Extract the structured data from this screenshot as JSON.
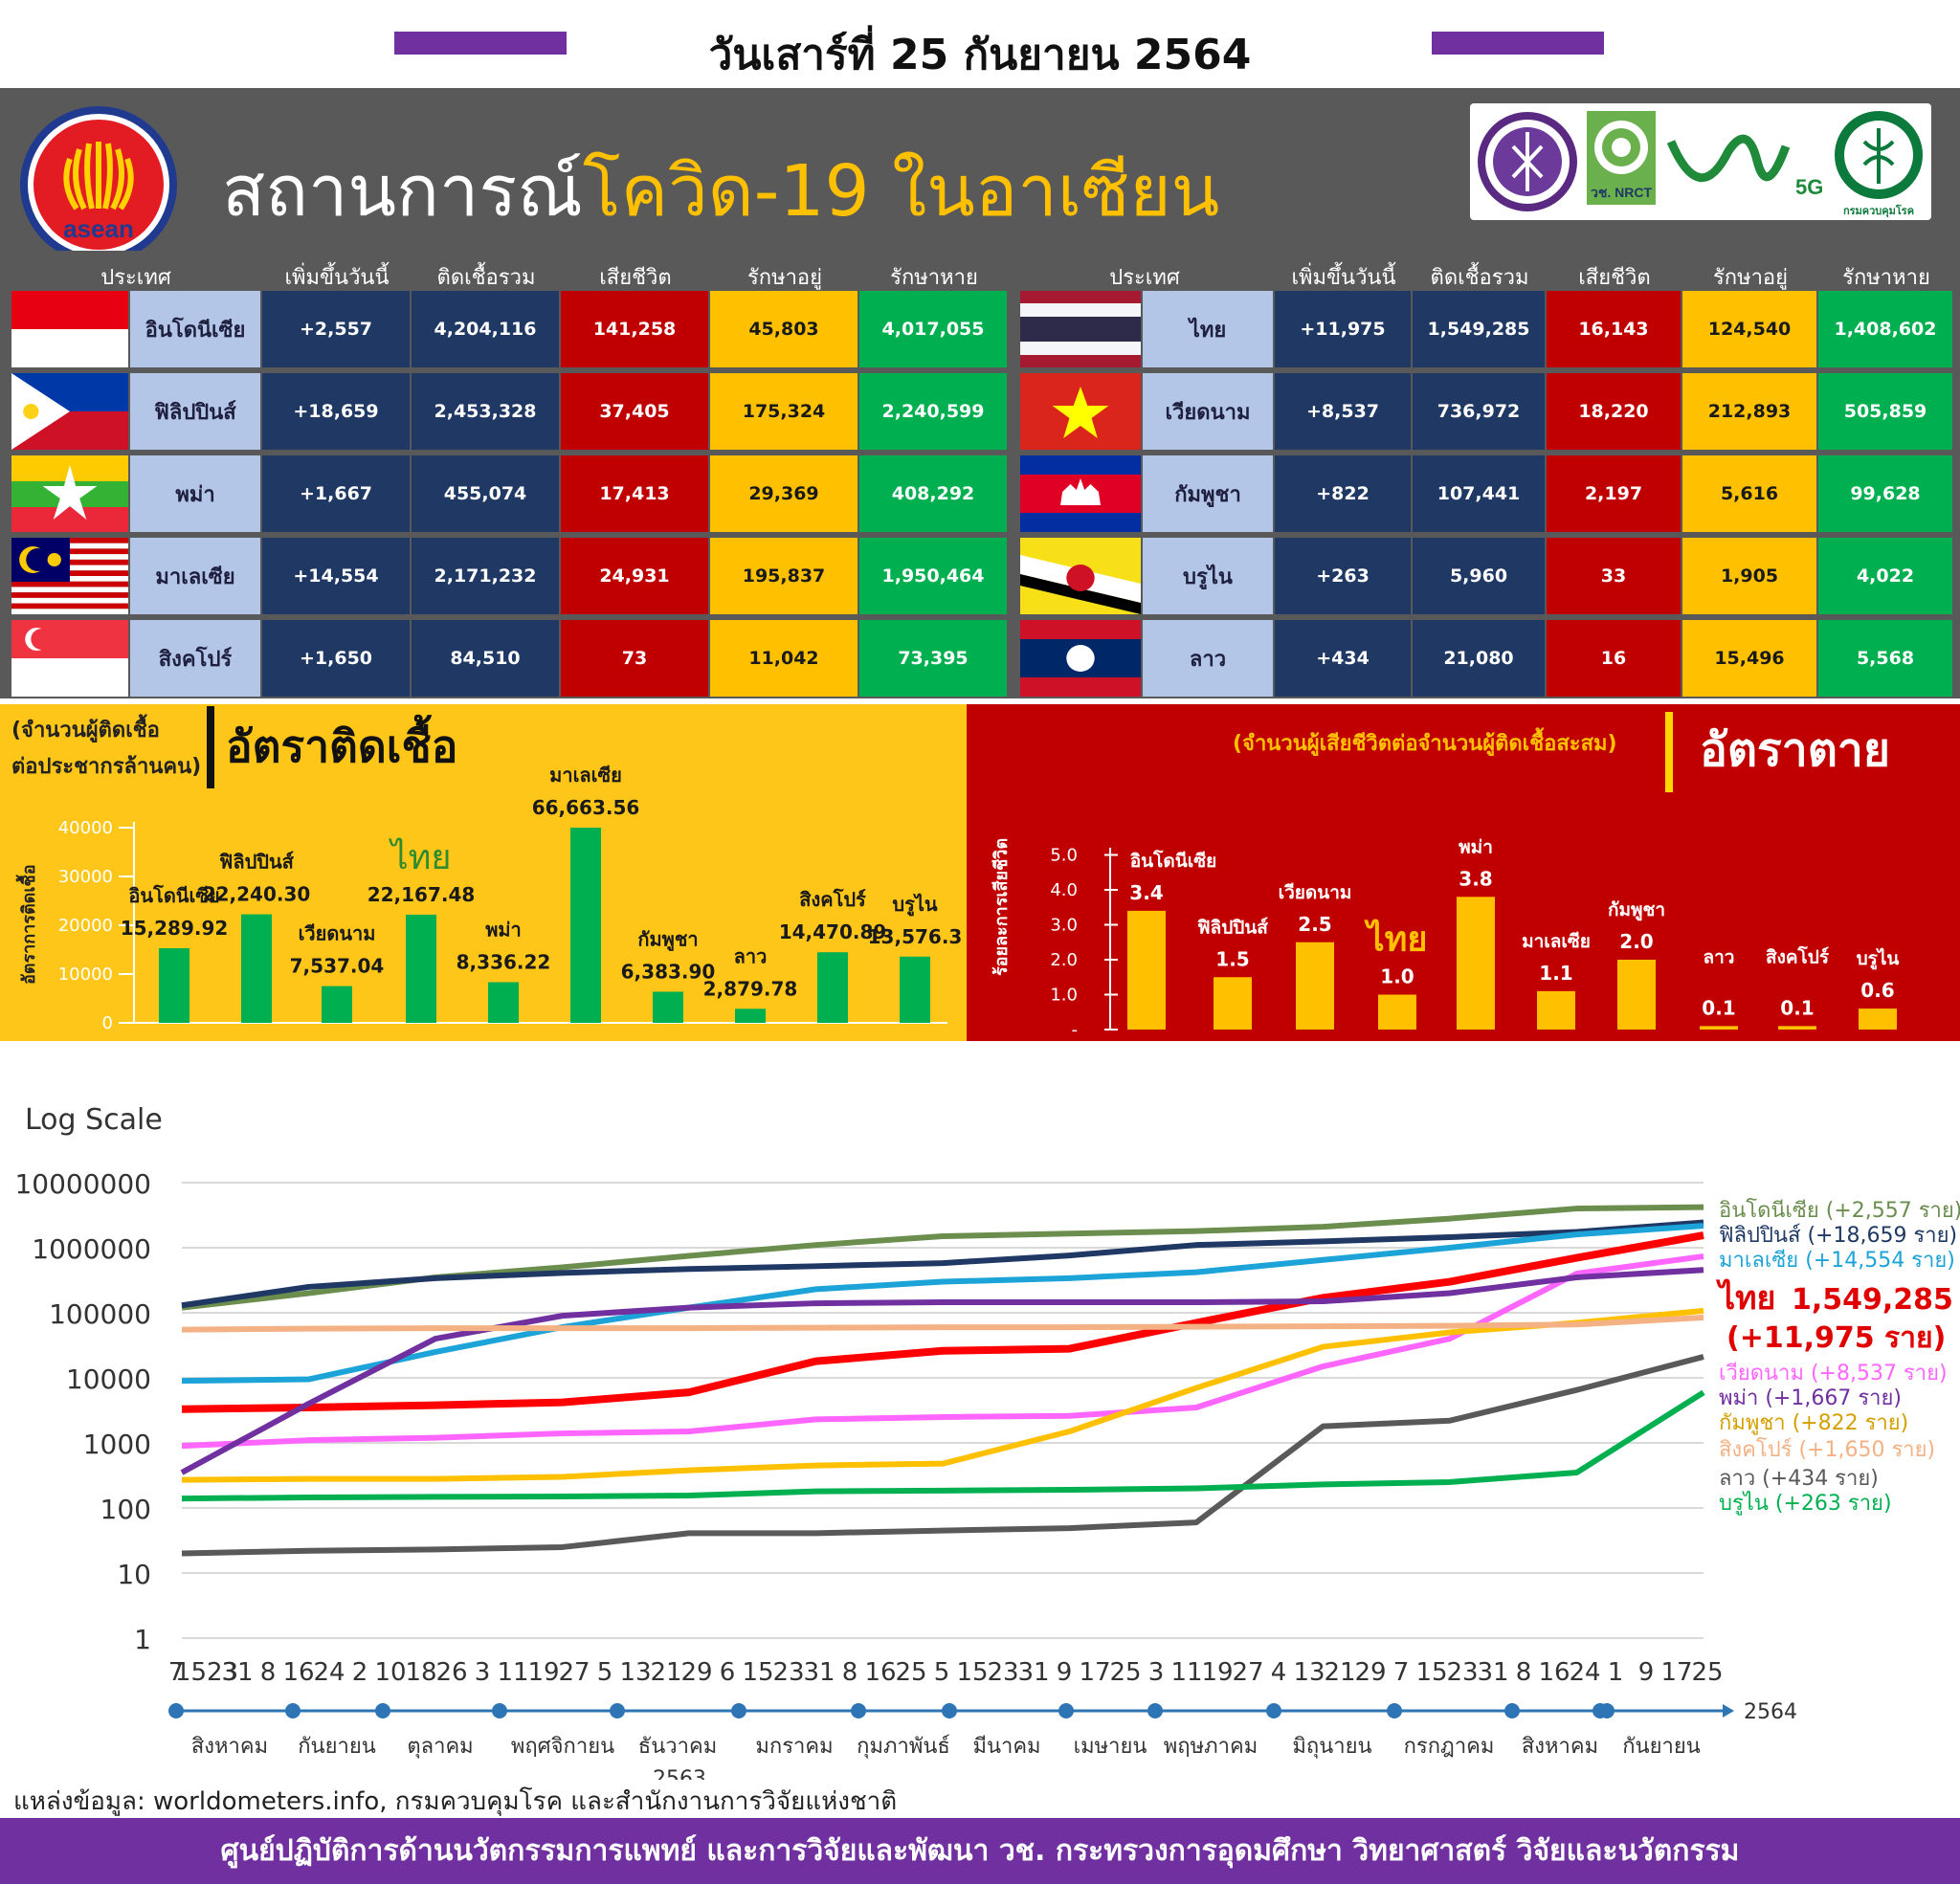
{
  "header": {
    "date": "วันเสาร์ที่ 25 กันยายน 2564",
    "title_part1": "สถานการณ์",
    "title_part2": "โควิด-19 ในอาเซียน",
    "asean_text": "asean",
    "logo_nrct": "วช. NRCT",
    "logo_5g": "5G",
    "logo_ddc": "กรมควบคุมโรค"
  },
  "colors": {
    "purple": "#7030a0",
    "header_gray": "#595959",
    "name_cell": "#b4c6e7",
    "navy": "#1f3864",
    "death_red": "#c00000",
    "active_yellow": "#ffc000",
    "recovered_green": "#00b050"
  },
  "table": {
    "columns": [
      "ประเทศ",
      "เพิ่มขึ้นวันนี้",
      "ติดเชื้อรวม",
      "เสียชีวิต",
      "รักษาอยู่",
      "รักษาหาย"
    ],
    "left": [
      {
        "flag": "indonesia-flag",
        "country": "อินโดนีเซีย",
        "new": "+2,557",
        "total": "4,204,116",
        "deaths": "141,258",
        "active": "45,803",
        "recovered": "4,017,055"
      },
      {
        "flag": "philippines-flag",
        "country": "ฟิลิปปินส์",
        "new": "+18,659",
        "total": "2,453,328",
        "deaths": "37,405",
        "active": "175,324",
        "recovered": "2,240,599"
      },
      {
        "flag": "myanmar-flag",
        "country": "พม่า",
        "new": "+1,667",
        "total": "455,074",
        "deaths": "17,413",
        "active": "29,369",
        "recovered": "408,292"
      },
      {
        "flag": "malaysia-flag",
        "country": "มาเลเซีย",
        "new": "+14,554",
        "total": "2,171,232",
        "deaths": "24,931",
        "active": "195,837",
        "recovered": "1,950,464"
      },
      {
        "flag": "singapore-flag",
        "country": "สิงคโปร์",
        "new": "+1,650",
        "total": "84,510",
        "deaths": "73",
        "active": "11,042",
        "recovered": "73,395"
      }
    ],
    "right": [
      {
        "flag": "thailand-flag",
        "country": "ไทย",
        "new": "+11,975",
        "total": "1,549,285",
        "deaths": "16,143",
        "active": "124,540",
        "recovered": "1,408,602"
      },
      {
        "flag": "vietnam-flag",
        "country": "เวียดนาม",
        "new": "+8,537",
        "total": "736,972",
        "deaths": "18,220",
        "active": "212,893",
        "recovered": "505,859"
      },
      {
        "flag": "cambodia-flag",
        "country": "กัมพูชา",
        "new": "+822",
        "total": "107,441",
        "deaths": "2,197",
        "active": "5,616",
        "recovered": "99,628"
      },
      {
        "flag": "brunei-flag",
        "country": "บรูไน",
        "new": "+263",
        "total": "5,960",
        "deaths": "33",
        "active": "1,905",
        "recovered": "4,022"
      },
      {
        "flag": "laos-flag",
        "country": "ลาว",
        "new": "+434",
        "total": "21,080",
        "deaths": "16",
        "active": "15,496",
        "recovered": "5,568"
      }
    ]
  },
  "chart_data": [
    {
      "type": "bar",
      "title": "อัตราติดเชื้อ",
      "subtitle": "(จำนวนผู้ติดเชื้อต่อประชากรล้านคน)",
      "ylabel": "อัตราการติดเชื้อ",
      "ylim": [
        0,
        40000
      ],
      "yticks": [
        "40000",
        "30000",
        "20000",
        "10000",
        "0"
      ],
      "categories": [
        "อินโดนีเซีย",
        "ฟิลิปปินส์",
        "เวียดนาม",
        "ไทย",
        "พม่า",
        "มาเลเซีย",
        "กัมพูชา",
        "ลาว",
        "สิงคโปร์",
        "บรูไน"
      ],
      "values": [
        15289.92,
        22240.3,
        7537.04,
        22167.48,
        8336.22,
        66663.56,
        6383.9,
        2879.78,
        14470.89,
        13576.3
      ],
      "value_labels": [
        "15,289.92",
        "22,240.30",
        "7,537.04",
        "22,167.48",
        "8,336.22",
        "66,663.56",
        "6,383.90",
        "2,879.78",
        "14,470.89",
        "13,576.3"
      ],
      "bar_color": "#00b050"
    },
    {
      "type": "bar",
      "title": "อัตราตาย",
      "subtitle": "(จำนวนผู้เสียชีวิตต่อจำนวนผู้ติดเชื้อสะสม)",
      "ylabel": "ร้อยละการเสียชีวิต",
      "ylim": [
        0,
        5
      ],
      "yticks": [
        "5.0",
        "4.0",
        "3.0",
        "2.0",
        "1.0",
        "-"
      ],
      "categories": [
        "อินโดนีเซีย",
        "ฟิลิปปินส์",
        "เวียดนาม",
        "ไทย",
        "พม่า",
        "มาเลเซีย",
        "กัมพูชา",
        "ลาว",
        "สิงคโปร์",
        "บรูไน"
      ],
      "values": [
        3.4,
        1.5,
        2.5,
        1.0,
        3.8,
        1.1,
        2.0,
        0.1,
        0.1,
        0.6
      ],
      "value_labels": [
        "3.4",
        "1.5",
        "2.5",
        "1.0",
        "3.8",
        "1.1",
        "2.0",
        "0.1",
        "0.1",
        "0.6"
      ],
      "bar_color": "#ffc000"
    },
    {
      "type": "line",
      "title": "Log Scale",
      "yscale": "log",
      "ylim": [
        1,
        10000000
      ],
      "yticks": [
        "10000000",
        "1000000",
        "100000",
        "10000",
        "1000",
        "100",
        "10",
        "1"
      ],
      "xticks": [
        "7",
        "1523",
        "31",
        "8",
        "16",
        "24",
        "2",
        "10",
        "18",
        "26",
        "3",
        "11",
        "19",
        "27",
        "5",
        "13",
        "21",
        "29",
        "6",
        "15",
        "23",
        "31",
        "8",
        "16",
        "25",
        "5",
        "15",
        "23",
        "31",
        "9",
        "17",
        "25",
        "3",
        "11",
        "19",
        "27",
        "4",
        "13",
        "21",
        "29",
        "7",
        "15",
        "23",
        "31",
        "8",
        "16",
        "24",
        "1",
        "9",
        "17",
        "25"
      ],
      "months": [
        "สิงหาคม",
        "กันยายน",
        "ตุลาคม",
        "พฤศจิกายน",
        "ธันวาคม",
        "มกราคม",
        "กุมภาพันธ์",
        "มีนาคม",
        "เมษายน",
        "พฤษภาคม",
        "มิถุนายน",
        "กรกฎาคม",
        "สิงหาคม",
        "กันยายน"
      ],
      "year_labels": [
        "2563",
        "2564"
      ],
      "series": [
        {
          "name": "อินโดนีเซีย",
          "label": "อินโดนีเซีย (+2,557 ราย)",
          "color": "#6b8e4e",
          "values": [
            120000,
            200000,
            350000,
            500000,
            750000,
            1100000,
            1500000,
            1650000,
            1800000,
            2100000,
            2800000,
            4000000,
            4204116
          ]
        },
        {
          "name": "ฟิลิปปินส์",
          "label": "ฟิลิปปินส์ (+18,659 ราย)",
          "color": "#1f3864",
          "values": [
            130000,
            250000,
            340000,
            410000,
            470000,
            520000,
            580000,
            760000,
            1100000,
            1250000,
            1450000,
            1750000,
            2453328
          ]
        },
        {
          "name": "มาเลเซีย",
          "label": "มาเลเซีย (+14,554 ราย)",
          "color": "#1ca3d8",
          "values": [
            9000,
            9500,
            25000,
            60000,
            120000,
            230000,
            300000,
            340000,
            420000,
            650000,
            1000000,
            1600000,
            2171232
          ]
        },
        {
          "name": "ไทย",
          "label_1": "ไทย",
          "label_2": "1,549,285",
          "label_3": "(+11,975 ราย)",
          "color": "#ff0000",
          "values": [
            3300,
            3500,
            3800,
            4200,
            6000,
            18000,
            26000,
            28000,
            70000,
            170000,
            300000,
            700000,
            1549285
          ]
        },
        {
          "name": "เวียดนาม",
          "label": "เวียดนาม (+8,537 ราย)",
          "color": "#ff66ff",
          "values": [
            900,
            1100,
            1200,
            1400,
            1500,
            2300,
            2500,
            2600,
            3500,
            15000,
            40000,
            400000,
            736972
          ]
        },
        {
          "name": "พม่า",
          "label": "พม่า (+1,667 ราย)",
          "color": "#7030a0",
          "values": [
            350,
            4000,
            40000,
            90000,
            120000,
            140000,
            145000,
            145000,
            145000,
            150000,
            200000,
            350000,
            455074
          ]
        },
        {
          "name": "กัมพูชา",
          "label": "กัมพูชา (+822 ราย)",
          "color": "#ffc000",
          "values": [
            270,
            280,
            280,
            300,
            380,
            450,
            480,
            1500,
            7000,
            30000,
            50000,
            70000,
            107441
          ]
        },
        {
          "name": "สิงคโปร์",
          "label": "สิงคโปร์ (+1,650 ราย)",
          "color": "#f4b183",
          "values": [
            55000,
            57000,
            58000,
            58000,
            58000,
            59000,
            60000,
            60000,
            61000,
            62000,
            63000,
            66000,
            84510
          ]
        },
        {
          "name": "ลาว",
          "label": "ลาว (+434 ราย)",
          "color": "#595959",
          "values": [
            20,
            22,
            23,
            25,
            41,
            41,
            45,
            49,
            60,
            1800,
            2200,
            6500,
            21080
          ]
        },
        {
          "name": "บรูไน",
          "label": "บรูไน (+263 ราย)",
          "color": "#00b050",
          "values": [
            140,
            145,
            148,
            150,
            155,
            180,
            185,
            190,
            200,
            230,
            250,
            350,
            5960
          ]
        }
      ]
    }
  ],
  "footer": {
    "source": "แหล่งข้อมูล: worldometers.info, กรมควบคุมโรค และสำนักงานการวิจัยแห่งชาติ",
    "org": "ศูนย์ปฏิบัติการด้านนวัตกรรมการแพทย์ และการวิจัยและพัฒนา วช. กระทรวงการอุดมศึกษา วิทยาศาสตร์ วิจัยและนวัตกรรม"
  }
}
